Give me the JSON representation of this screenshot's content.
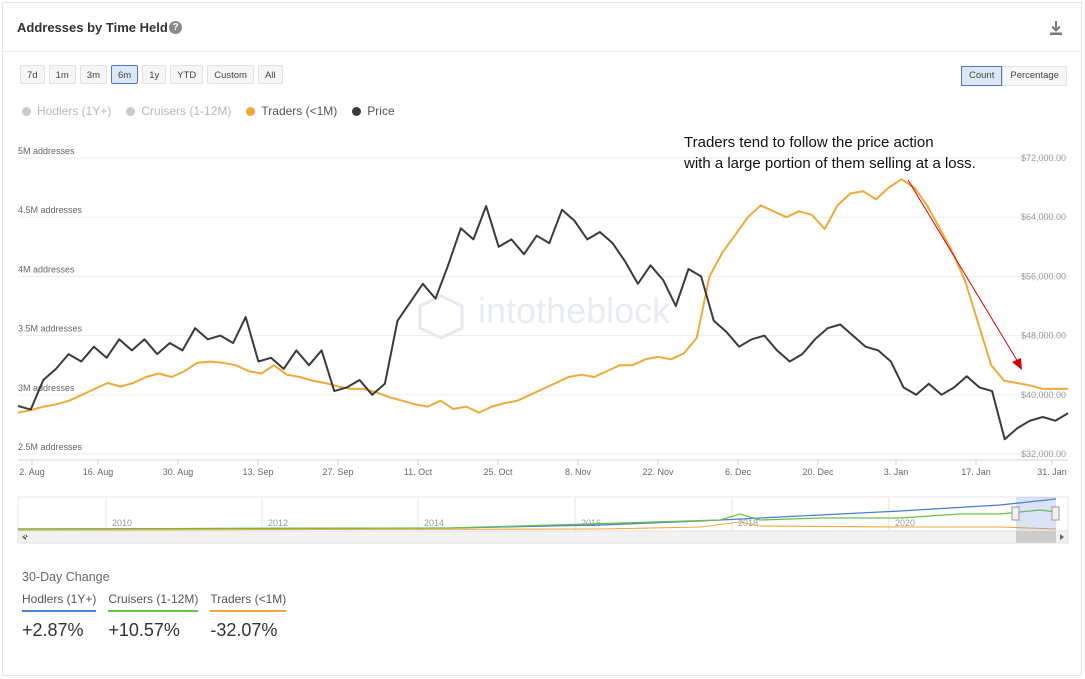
{
  "header": {
    "title": "Addresses by Time Held",
    "help_icon": "?",
    "download_icon": "download-icon"
  },
  "ranges": [
    {
      "label": "7d",
      "active": false
    },
    {
      "label": "1m",
      "active": false
    },
    {
      "label": "3m",
      "active": false
    },
    {
      "label": "6m",
      "active": true
    },
    {
      "label": "1y",
      "active": false
    },
    {
      "label": "YTD",
      "active": false
    },
    {
      "label": "Custom",
      "active": false
    },
    {
      "label": "All",
      "active": false
    }
  ],
  "modes": [
    {
      "label": "Count",
      "active": true
    },
    {
      "label": "Percentage",
      "active": false
    }
  ],
  "legend": [
    {
      "label": "Hodlers (1Y+)",
      "color": "#cccccc",
      "text_color": "#b8b8b8"
    },
    {
      "label": "Cruisers (1-12M)",
      "color": "#cccccc",
      "text_color": "#b8b8b8"
    },
    {
      "label": "Traders (<1M)",
      "color": "#f0a93a",
      "text_color": "#555555"
    },
    {
      "label": "Price",
      "color": "#3a3a3a",
      "text_color": "#555555"
    }
  ],
  "annotation": {
    "line1": "Traders tend to follow the price action",
    "line2": "with a large portion of them selling at a loss.",
    "arrow_color": "#d40000"
  },
  "watermark": "intotheblock",
  "chart_data": {
    "type": "line",
    "x_labels": [
      "2. Aug",
      "16. Aug",
      "30. Aug",
      "13. Sep",
      "27. Sep",
      "11. Oct",
      "25. Oct",
      "8. Nov",
      "22. Nov",
      "6. Dec",
      "20. Dec",
      "3. Jan",
      "17. Jan",
      "31. Jan"
    ],
    "y_left_labels": [
      "2.5M addresses",
      "3M addresses",
      "3.5M addresses",
      "4M addresses",
      "4.5M addresses",
      "5M addresses"
    ],
    "y_left_range": [
      2500000,
      5000000
    ],
    "y_right_labels": [
      "$32,000.00",
      "$40,000.00",
      "$48,000.00",
      "$56,000.00",
      "$64,000.00",
      "$72,000.00"
    ],
    "y_right_range": [
      32000,
      72000
    ],
    "series": [
      {
        "name": "Traders (<1M)",
        "color": "#f0a93a",
        "axis": "left",
        "values": [
          2.85,
          2.87,
          2.9,
          2.92,
          2.95,
          3.0,
          3.05,
          3.1,
          3.07,
          3.1,
          3.15,
          3.18,
          3.15,
          3.2,
          3.27,
          3.28,
          3.27,
          3.25,
          3.2,
          3.18,
          3.25,
          3.17,
          3.15,
          3.12,
          3.1,
          3.07,
          3.05,
          3.05,
          3.02,
          2.98,
          2.95,
          2.92,
          2.9,
          2.95,
          2.88,
          2.9,
          2.85,
          2.9,
          2.93,
          2.95,
          3.0,
          3.05,
          3.1,
          3.15,
          3.17,
          3.15,
          3.2,
          3.25,
          3.25,
          3.3,
          3.32,
          3.3,
          3.35,
          3.48,
          4.0,
          4.2,
          4.35,
          4.5,
          4.6,
          4.55,
          4.5,
          4.55,
          4.52,
          4.4,
          4.6,
          4.7,
          4.72,
          4.65,
          4.75,
          4.82,
          4.75,
          4.6,
          4.4,
          4.2,
          3.95,
          3.6,
          3.25,
          3.12,
          3.1,
          3.08,
          3.05,
          3.05,
          3.05
        ],
        "x_start": 0.0,
        "x_end": 1.0
      },
      {
        "name": "Price",
        "color": "#3a3a3a",
        "axis": "right",
        "values": [
          38500,
          38000,
          42000,
          43500,
          45500,
          44500,
          46500,
          45000,
          47500,
          46000,
          47500,
          45500,
          47000,
          46000,
          49000,
          47500,
          48000,
          47000,
          50500,
          44500,
          45000,
          43500,
          46000,
          44000,
          46000,
          40500,
          41000,
          42000,
          40000,
          41500,
          50000,
          52500,
          55000,
          53000,
          57500,
          62500,
          61000,
          65500,
          60000,
          61000,
          59000,
          61500,
          60500,
          65000,
          63500,
          61000,
          62000,
          60500,
          58000,
          55000,
          57500,
          55500,
          52000,
          57000,
          56000,
          50000,
          48500,
          46500,
          47500,
          48000,
          46000,
          44500,
          45500,
          47500,
          49000,
          49500,
          48000,
          46500,
          46000,
          44500,
          41000,
          40000,
          41500,
          40000,
          41000,
          42500,
          41000,
          40500,
          34000,
          35500,
          36500,
          37000,
          36500,
          37500
        ]
      },
      {
        "name": "Hodlers (1Y+)",
        "color": "#cccccc",
        "axis": "left",
        "values": []
      },
      {
        "name": "Cruisers (1-12M)",
        "color": "#cccccc",
        "axis": "left",
        "values": []
      }
    ],
    "navigator": {
      "x_labels": [
        "2010",
        "2012",
        "2014",
        "2016",
        "2018",
        "2020"
      ],
      "series_colors": {
        "hodlers": "#4a7fd4",
        "cruisers": "#6cc04a",
        "traders": "#f0a93a"
      }
    }
  },
  "stats": {
    "title": "30-Day Change",
    "items": [
      {
        "label": "Hodlers (1Y+)",
        "value": "+2.87%",
        "color": "#4a7fd4"
      },
      {
        "label": "Cruisers (1-12M)",
        "value": "+10.57%",
        "color": "#6cc04a"
      },
      {
        "label": "Traders (<1M)",
        "value": "-32.07%",
        "color": "#f0a93a"
      }
    ]
  }
}
